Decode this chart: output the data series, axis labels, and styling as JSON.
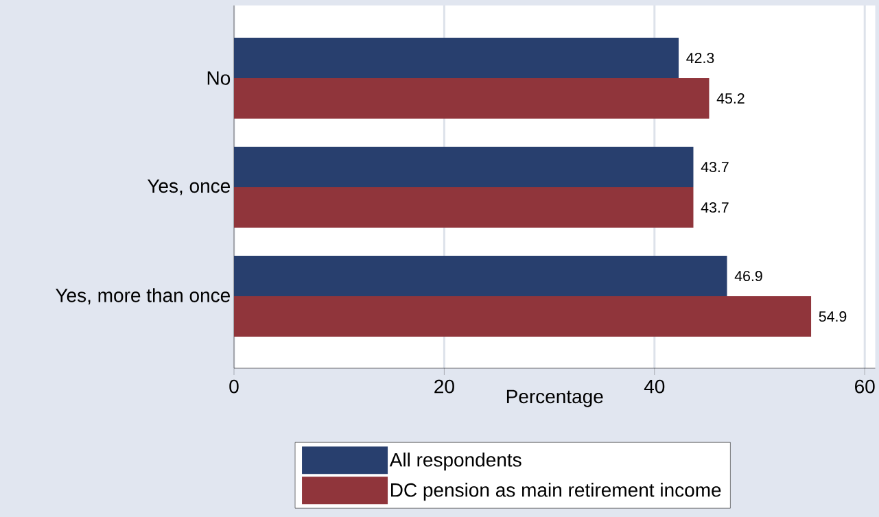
{
  "chart_data": {
    "type": "bar",
    "orientation": "horizontal",
    "xlabel": "Percentage",
    "categories": [
      "No",
      "Yes, once",
      "Yes, more than once"
    ],
    "series": [
      {
        "name": "All respondents",
        "color": "#283f6e",
        "values": [
          42.3,
          43.7,
          46.9
        ]
      },
      {
        "name": "DC pension as main retirement income",
        "color": "#90353b",
        "values": [
          45.2,
          43.7,
          54.9
        ]
      }
    ],
    "xlim": [
      0,
      61
    ],
    "xticks": [
      0,
      20,
      40,
      60
    ],
    "grid": "x",
    "legend": "bottom",
    "data_labels": true
  }
}
